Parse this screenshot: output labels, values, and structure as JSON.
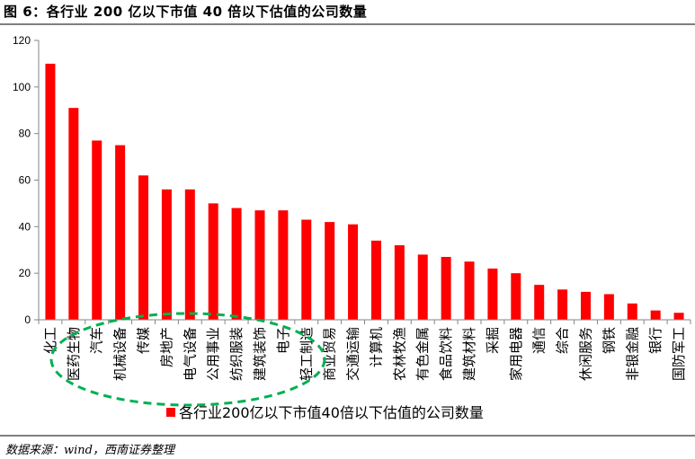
{
  "title": "图 6：各行业 200 亿以下市值 40 倍以下估值的公司数量",
  "source": "数据来源：wind，西南证券整理",
  "colors": {
    "bar": "#ff0000",
    "highlight": "#00b050",
    "axis": "#868686",
    "rule": "#7f7f7f"
  },
  "chart_data": {
    "type": "bar",
    "title": "",
    "xlabel": "",
    "ylabel": "",
    "ylim": [
      0,
      120
    ],
    "yticks": [
      0,
      20,
      40,
      60,
      80,
      100,
      120
    ],
    "grid": false,
    "legend_position": "bottom",
    "categories": [
      "化工",
      "医药生物",
      "汽车",
      "机械设备",
      "传媒",
      "房地产",
      "电气设备",
      "公用事业",
      "纺织服装",
      "建筑装饰",
      "电子",
      "轻工制造",
      "商业贸易",
      "交通运输",
      "计算机",
      "农林牧渔",
      "有色金属",
      "食品饮料",
      "建筑材料",
      "采掘",
      "家用电器",
      "通信",
      "综合",
      "休闲服务",
      "钢铁",
      "非银金融",
      "银行",
      "国防军工"
    ],
    "series": [
      {
        "name": "各行业200亿以下市值40倍以下估值的公司数量",
        "values": [
          110,
          91,
          77,
          75,
          62,
          56,
          56,
          50,
          48,
          47,
          47,
          43,
          42,
          41,
          34,
          32,
          28,
          27,
          25,
          22,
          20,
          15,
          13,
          12,
          11,
          7,
          4,
          3
        ]
      }
    ]
  }
}
